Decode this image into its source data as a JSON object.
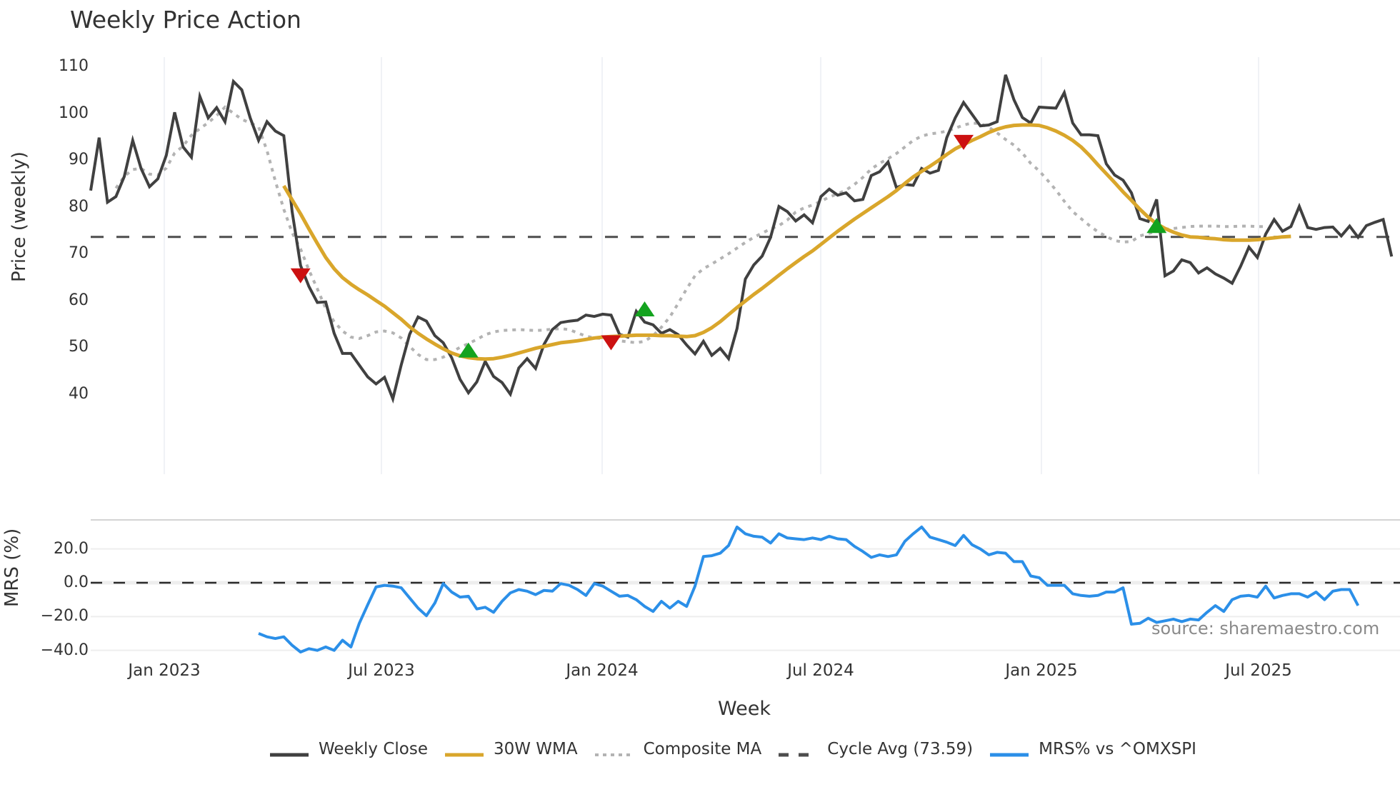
{
  "title": "Weekly Price Action",
  "watermark": "source: sharemaestro.com",
  "colors": {
    "weekly_close": "#404040",
    "wma30": "#d9a62b",
    "composite_ma": "#b3b3b3",
    "cycle_avg": "#4d4d4d",
    "mrs": "#2b8fe8",
    "buy_marker": "#14a31f",
    "sell_marker": "#cc1111",
    "grid": "#e8ecf2"
  },
  "chart_data": [
    {
      "type": "line",
      "title": "Weekly Price Action",
      "xlabel": "",
      "ylabel": "Price (weekly)",
      "ylim": [
        35,
        112
      ],
      "yticks": [
        40,
        50,
        60,
        70,
        80,
        90,
        100,
        110
      ],
      "xtick_labels": [
        "Jan 2023",
        "Jul 2023",
        "Jan 2024",
        "Jul 2024",
        "Jan 2025",
        "Jul 2025"
      ],
      "grid": "vertical",
      "series": [
        {
          "name": "Weekly Close",
          "style": "solid",
          "values": [
            83.5,
            94.8,
            81,
            82.2,
            86.5,
            94.2,
            88.2,
            84.3,
            86,
            91,
            100.2,
            92.8,
            90.6,
            103.6,
            99,
            101.2,
            98.2,
            106.8,
            105,
            99,
            94.2,
            98.2,
            96.2,
            95.2,
            79,
            67.5,
            63,
            59.6,
            59.7,
            53,
            48.7,
            48.7,
            46.2,
            43.7,
            42.2,
            43.6,
            39,
            46.3,
            52.8,
            56.5,
            55.6,
            52.5,
            51,
            47.8,
            43.2,
            40.3,
            42.6,
            47,
            43.8,
            42.5,
            40,
            45.6,
            47.6,
            45.5,
            50.6,
            53.8,
            55.3,
            55.6,
            55.8,
            56.9,
            56.6,
            57.1,
            56.9,
            52.8,
            52.2,
            57.7,
            55.4,
            54.8,
            53,
            53.8,
            52.7,
            50.5,
            48.6,
            51.3,
            48.3,
            49.8,
            47.6,
            54,
            64.6,
            67.6,
            69.5,
            73.5,
            80.1,
            79,
            77,
            78.3,
            76.6,
            82.2,
            83.8,
            82.5,
            83,
            81.3,
            81.6,
            86.7,
            87.5,
            89.6,
            84.1,
            84.8,
            84.6,
            88.2,
            87.2,
            87.8,
            94.8,
            99,
            102.3,
            99.8,
            97.3,
            97.5,
            98.2,
            108.2,
            102.9,
            99.1,
            97.9,
            101.3,
            101.2,
            101.1,
            104.4,
            97.9,
            95.4,
            95.4,
            95.2,
            89.2,
            86.8,
            85.7,
            83,
            77.5,
            76.9,
            81.6,
            65.3,
            66.3,
            68.7,
            68.1,
            65.9,
            67,
            65.7,
            64.8,
            63.7,
            67.3,
            71.4,
            69.2,
            74.2,
            77.3,
            74.8,
            75.8,
            80.1,
            75.6,
            75.2,
            75.6,
            75.7,
            73.8,
            75.9,
            73.5,
            76,
            76.7,
            77.3,
            69.4
          ]
        },
        {
          "name": "30W WMA",
          "style": "solid",
          "start_index": 23,
          "values": [
            84.5,
            81.5,
            78.5,
            75.3,
            72.2,
            69.2,
            66.8,
            64.9,
            63.5,
            62.3,
            61.2,
            60,
            58.8,
            57.4,
            56,
            54.4,
            53,
            51.8,
            50.7,
            49.7,
            48.8,
            48.2,
            47.8,
            47.6,
            47.5,
            47.6,
            47.9,
            48.3,
            48.8,
            49.3,
            49.8,
            50.2,
            50.6,
            51,
            51.2,
            51.4,
            51.7,
            52,
            52.2,
            52.3,
            52.4,
            52.5,
            52.6,
            52.6,
            52.6,
            52.5,
            52.5,
            52.4,
            52.3,
            52.5,
            53.2,
            54.2,
            55.5,
            57,
            58.5,
            59.9,
            61.3,
            62.6,
            64,
            65.4,
            66.8,
            68.1,
            69.4,
            70.6,
            72,
            73.4,
            74.8,
            76.1,
            77.4,
            78.6,
            79.8,
            81,
            82.2,
            83.5,
            85,
            86.4,
            87.6,
            88.7,
            89.9,
            91.2,
            92.4,
            93.3,
            94.2,
            95,
            95.9,
            96.6,
            97.1,
            97.4,
            97.5,
            97.5,
            97.4,
            96.9,
            96.2,
            95.3,
            94.2,
            92.8,
            91,
            89,
            87.1,
            85.2,
            83.2,
            81.4,
            79.5,
            77.8,
            76.4,
            75.4,
            74.6,
            74,
            73.6,
            73.5,
            73.3,
            73.2,
            73,
            72.9,
            72.9,
            72.9,
            73,
            73.2,
            73.4,
            73.6,
            73.7
          ]
        },
        {
          "name": "Composite MA",
          "style": "dotted",
          "start_index": 3,
          "values": [
            84,
            86.5,
            88,
            88.2,
            87,
            86.8,
            88.3,
            91.5,
            93,
            95.3,
            96.7,
            98,
            99.5,
            101.3,
            100,
            98.7,
            97.9,
            97.1,
            92,
            85.5,
            79.5,
            74.5,
            71,
            66.5,
            62.5,
            58.3,
            55.5,
            53.5,
            52.2,
            51.9,
            52.5,
            53.3,
            53.5,
            53.1,
            52,
            50.2,
            48.5,
            47.4,
            47.4,
            47.9,
            49,
            50,
            50.8,
            51.7,
            52.7,
            53.3,
            53.6,
            53.7,
            53.8,
            53.7,
            53.6,
            53.7,
            53.9,
            54,
            53.8,
            53.1,
            52.4,
            52,
            51.9,
            51.6,
            51.4,
            51.2,
            51,
            51.3,
            52.5,
            54.3,
            56.5,
            59.4,
            62.5,
            65.3,
            66.8,
            67.8,
            68.9,
            70,
            71.2,
            72.4,
            73.5,
            74.4,
            75.3,
            76,
            77.2,
            78.9,
            79.8,
            80.4,
            81.2,
            82.1,
            82.8,
            83.6,
            84.8,
            86.3,
            88.1,
            89.3,
            90.3,
            91.4,
            92.8,
            94.2,
            95.1,
            95.6,
            95.8,
            96.2,
            96.8,
            97.5,
            97.9,
            97.8,
            97,
            95.8,
            94.4,
            93.2,
            91.5,
            89.3,
            87.7,
            85.7,
            83.6,
            81.2,
            79,
            77.5,
            76,
            74.7,
            73.7,
            72.8,
            72.5,
            72.6,
            73.8,
            74.3,
            74.8,
            75.2,
            75.4,
            75.6,
            75.8,
            75.9,
            75.9,
            75.9,
            75.8,
            75.8,
            75.9,
            75.9,
            75.8,
            75.8
          ]
        },
        {
          "name": "Cycle Avg (73.59)",
          "style": "dashed",
          "constant": 73.59
        }
      ],
      "markers": [
        {
          "type": "sell",
          "shape": "triangle-down",
          "week_index": 25,
          "value": 65.5
        },
        {
          "type": "buy",
          "shape": "triangle-up",
          "week_index": 45,
          "value": 49.2
        },
        {
          "type": "sell",
          "shape": "triangle-down",
          "week_index": 62,
          "value": 51.2
        },
        {
          "type": "buy",
          "shape": "triangle-up",
          "week_index": 66,
          "value": 58.0
        },
        {
          "type": "sell",
          "shape": "triangle-down",
          "week_index": 104,
          "value": 94.0
        },
        {
          "type": "buy",
          "shape": "triangle-up",
          "week_index": 127,
          "value": 75.8
        }
      ]
    },
    {
      "type": "line",
      "title": "",
      "xlabel": "Week",
      "ylabel": "MRS (%)",
      "ylim": [
        -44,
        36
      ],
      "yticks": [
        20.0,
        0.0,
        -20.0,
        -40.0
      ],
      "ytick_labels": [
        "20.0",
        "0.0",
        "−20.0",
        "−40.0"
      ],
      "xtick_labels": [
        "Jan 2023",
        "Jul 2023",
        "Jan 2024",
        "Jul 2024",
        "Jan 2025",
        "Jul 2025"
      ],
      "zero_line": "dashed",
      "series": [
        {
          "name": "MRS% vs ^OMXSPI",
          "style": "solid",
          "start_index": 20,
          "values": [
            -30,
            -32,
            -33,
            -32,
            -37,
            -41,
            -39,
            -40,
            -38,
            -40,
            -34,
            -38,
            -24,
            -13,
            -2.5,
            -1.5,
            -2,
            -3,
            -9,
            -15,
            -19.5,
            -12,
            -0.5,
            -5.5,
            -8.5,
            -8,
            -15.5,
            -14.5,
            -17.5,
            -11,
            -6,
            -4,
            -5,
            -7,
            -4.5,
            -5,
            -0.5,
            -1.5,
            -4,
            -7.5,
            -0.5,
            -2,
            -5,
            -8,
            -7.5,
            -10,
            -14,
            -17,
            -11,
            -15,
            -11,
            -14,
            -2,
            15.5,
            16,
            17.5,
            22,
            33,
            29,
            27.5,
            27,
            23.5,
            29,
            26.5,
            26,
            25.5,
            26.5,
            25.5,
            27.5,
            26,
            25.5,
            21.5,
            18.5,
            15,
            16.5,
            15.5,
            16.5,
            24.5,
            29,
            33,
            27,
            25.5,
            24,
            22,
            28,
            22.5,
            20,
            16.5,
            18,
            17.5,
            12.5,
            12.5,
            4,
            3,
            -1.5,
            -1.5,
            -1.5,
            -6.5,
            -7.5,
            -8,
            -7.5,
            -5.5,
            -5.5,
            -3,
            -24.5,
            -24,
            -21,
            -23.5,
            -22.5,
            -21.5,
            -23,
            -21.5,
            -22,
            -17.5,
            -13.5,
            -17,
            -10,
            -8,
            -7.5,
            -8.5,
            -2,
            -9,
            -7.5,
            -6.5,
            -6.5,
            -8.5,
            -5.5,
            -10,
            -5,
            -4,
            -4,
            -13.5
          ]
        }
      ]
    }
  ],
  "main_chart": {
    "ylabel": "Price (weekly)",
    "yticks": [
      "110",
      "100",
      "90",
      "80",
      "70",
      "60",
      "50",
      "40"
    ]
  },
  "mrs_chart": {
    "ylabel": "MRS (%)",
    "yticks": [
      "20.0",
      "0.0",
      "−20.0",
      "−40.0"
    ]
  },
  "x_axis": {
    "label": "Week",
    "ticks": [
      "Jan 2023",
      "Jul 2023",
      "Jan 2024",
      "Jul 2024",
      "Jan 2025",
      "Jul 2025"
    ]
  },
  "legend": {
    "items": [
      {
        "label": "Weekly Close",
        "style": "solid",
        "color": "#404040"
      },
      {
        "label": "30W WMA",
        "style": "solid",
        "color": "#d9a62b"
      },
      {
        "label": "Composite MA",
        "style": "dotted",
        "color": "#b3b3b3"
      },
      {
        "label": "Cycle Avg (73.59)",
        "style": "dashed",
        "color": "#4d4d4d"
      },
      {
        "label": "MRS% vs ^OMXSPI",
        "style": "solid",
        "color": "#2b8fe8"
      }
    ]
  }
}
